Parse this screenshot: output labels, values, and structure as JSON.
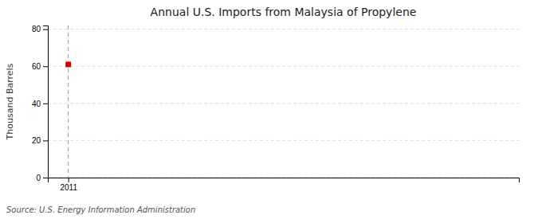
{
  "chart_data": {
    "type": "scatter",
    "title": "Annual U.S. Imports from Malaysia of Propylene",
    "ylabel": "Thousand Barrels",
    "source": "Source: U.S. Energy Information Administration",
    "x": [
      2011
    ],
    "values": [
      61
    ],
    "color": "#cc0000",
    "marker": "square",
    "xlim": [
      2010.5,
      2022
    ],
    "xticks": [
      2011
    ],
    "ylim": [
      0,
      82
    ],
    "yticks": [
      0,
      20,
      40,
      60,
      80
    ],
    "vline_x": 2011,
    "grid": "y"
  }
}
